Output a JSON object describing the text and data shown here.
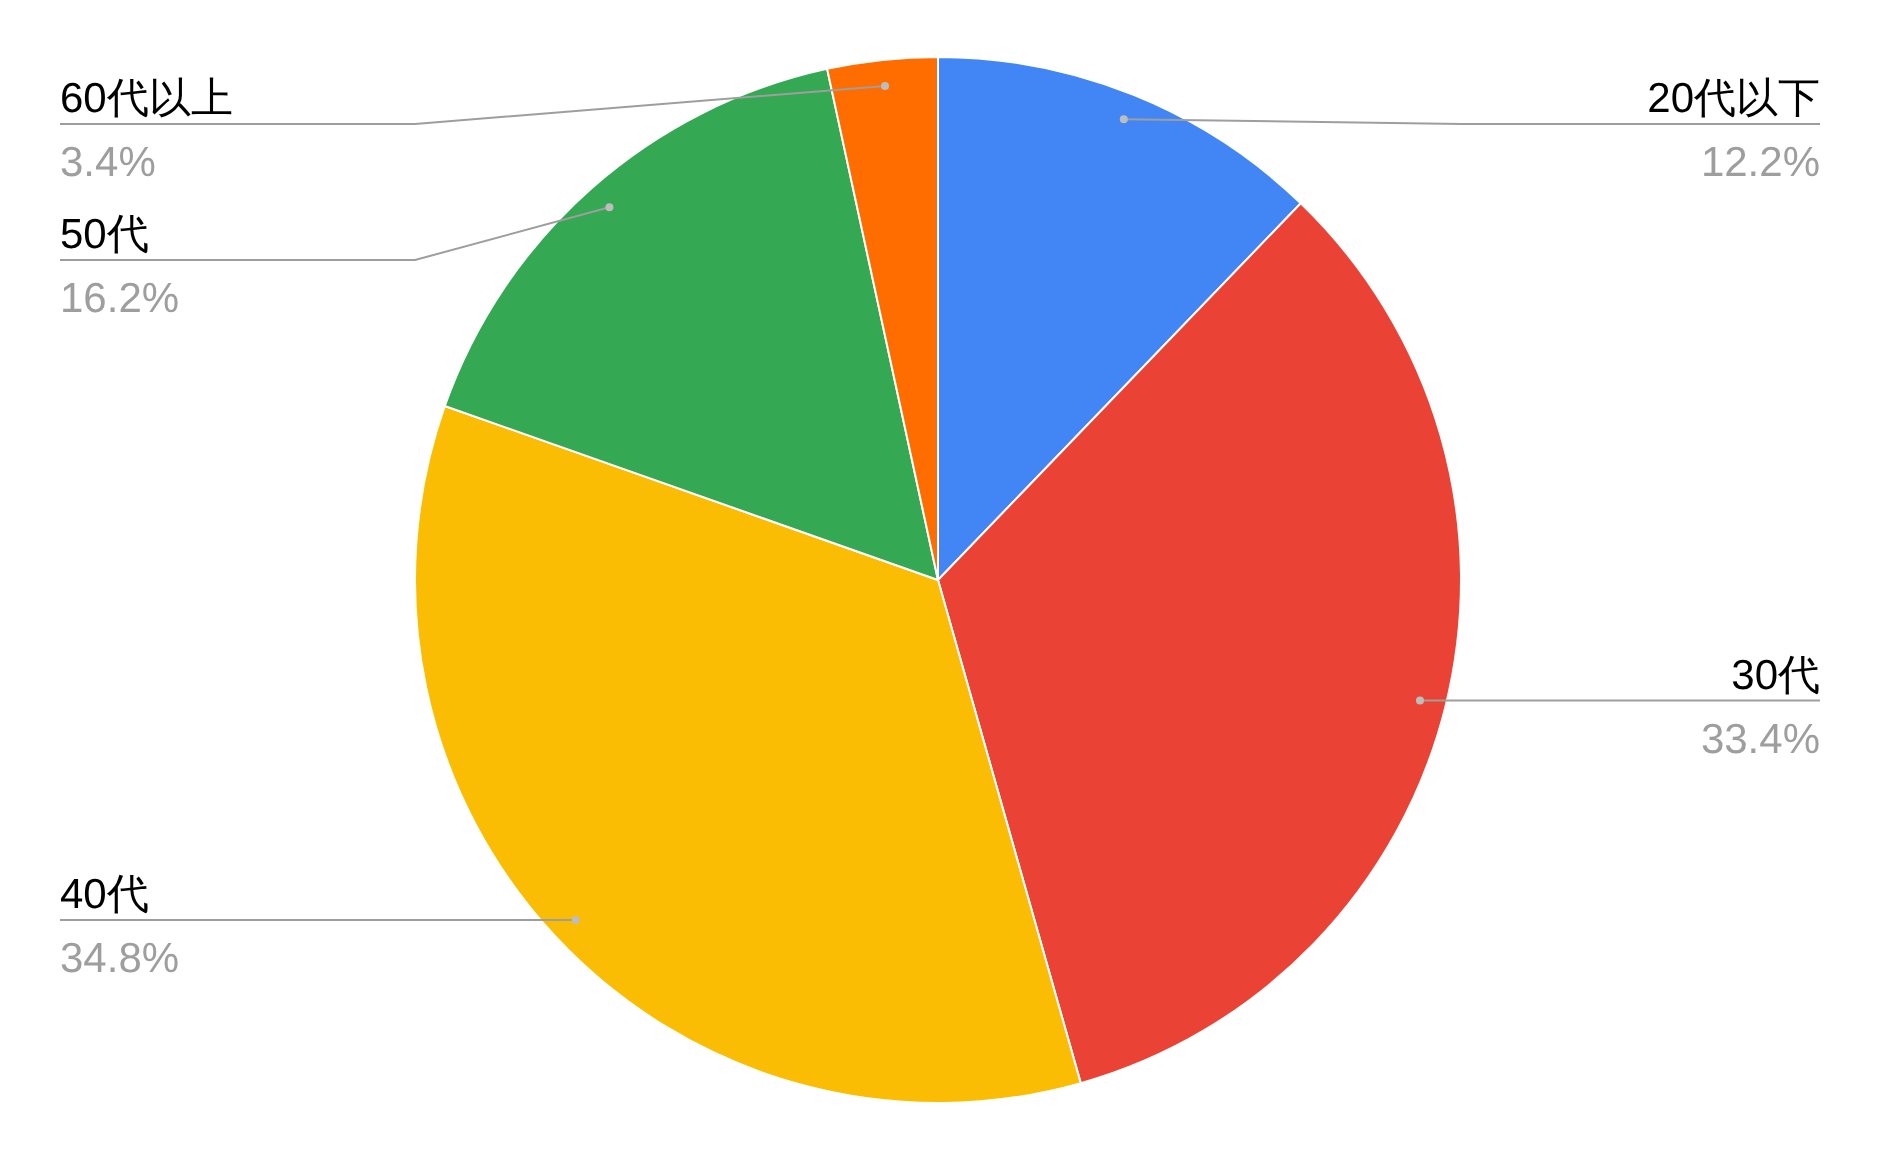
{
  "chart_data": {
    "type": "pie",
    "categories": [
      "20代以下",
      "30代",
      "40代",
      "50代",
      "60代以上"
    ],
    "values": [
      12.2,
      33.4,
      34.8,
      16.2,
      3.4
    ],
    "colors": [
      "#4285f4",
      "#ea4335",
      "#fbbc04",
      "#34a853",
      "#ff6d01"
    ],
    "value_labels": [
      "12.2%",
      "33.4%",
      "34.8%",
      "16.2%",
      "3.4%"
    ],
    "legend": false
  }
}
